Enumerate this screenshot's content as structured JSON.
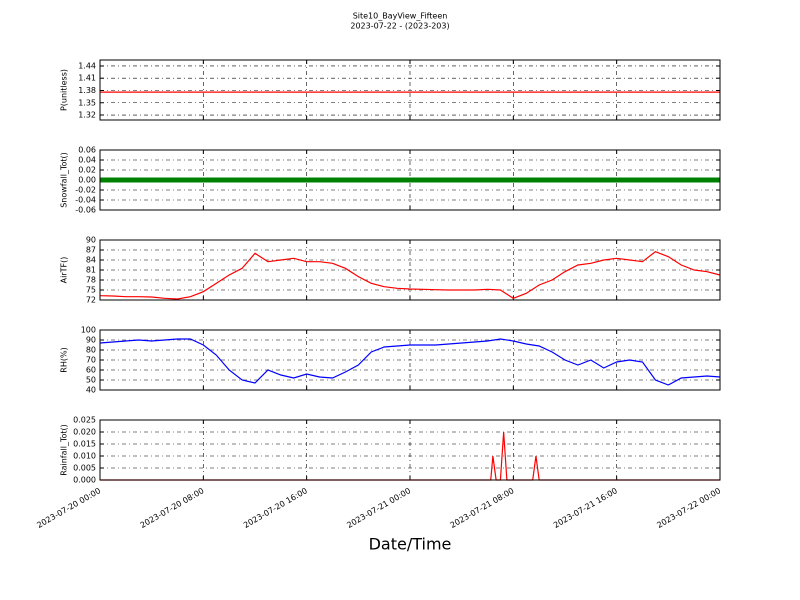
{
  "chart_data": [
    {
      "type": "line",
      "title": "Site10_BayView_Fifteen",
      "subtitle": "2023-07-22 - (2023-203)",
      "ylabel": "P(unitless)",
      "x": [
        "2023-07-20 00:00",
        "2023-07-22 00:00"
      ],
      "series": [
        {
          "name": "P",
          "color": "#ff0000",
          "values": [
            1.376,
            1.376
          ]
        }
      ],
      "xlim": [
        "2023-07-20 00:00",
        "2023-07-22 00:00"
      ],
      "xticks": [
        "2023-07-20 00:00",
        "2023-07-20 08:00",
        "2023-07-20 16:00",
        "2023-07-21 00:00",
        "2023-07-21 08:00",
        "2023-07-21 16:00",
        "2023-07-22 00:00"
      ],
      "ylim": [
        1.3078,
        1.4546
      ],
      "yticks": [
        1.32,
        1.35,
        1.38,
        1.41,
        1.44
      ],
      "grid": true
    },
    {
      "type": "line",
      "ylabel": "Snowfall_Tot()",
      "x": [
        "2023-07-20 00:00",
        "2023-07-20 01:00",
        "2023-07-20 02:00",
        "2023-07-20 03:00",
        "2023-07-20 04:00",
        "2023-07-20 05:00",
        "2023-07-20 06:00",
        "2023-07-20 07:00",
        "2023-07-20 08:00",
        "2023-07-20 09:00",
        "2023-07-20 10:00",
        "2023-07-20 11:00",
        "2023-07-20 12:00",
        "2023-07-20 13:00",
        "2023-07-20 14:00",
        "2023-07-20 15:00",
        "2023-07-20 16:00",
        "2023-07-20 17:00",
        "2023-07-20 18:00",
        "2023-07-20 19:00",
        "2023-07-20 20:00",
        "2023-07-20 21:00",
        "2023-07-20 22:00",
        "2023-07-20 23:00",
        "2023-07-21 00:00",
        "2023-07-21 01:00",
        "2023-07-21 02:00",
        "2023-07-21 03:00",
        "2023-07-21 04:00",
        "2023-07-21 05:00",
        "2023-07-21 06:00",
        "2023-07-21 07:00",
        "2023-07-21 08:00",
        "2023-07-21 09:00",
        "2023-07-21 10:00",
        "2023-07-21 11:00",
        "2023-07-21 12:00",
        "2023-07-21 13:00",
        "2023-07-21 14:00",
        "2023-07-21 15:00",
        "2023-07-21 16:00",
        "2023-07-21 17:00",
        "2023-07-21 18:00",
        "2023-07-21 19:00",
        "2023-07-21 20:00",
        "2023-07-21 21:00",
        "2023-07-21 22:00",
        "2023-07-21 23:00",
        "2023-07-22 00:00"
      ],
      "series": [
        {
          "name": "Snowfall_Tot",
          "color": "#008000",
          "values": [
            0,
            0,
            0,
            0,
            0,
            0,
            0,
            0,
            0,
            0,
            0,
            0,
            0,
            0,
            0,
            0,
            0,
            0,
            0,
            0,
            0,
            0,
            0,
            0,
            0,
            0,
            0,
            0,
            0,
            0,
            0,
            0,
            0,
            0,
            0,
            0,
            0,
            0,
            0,
            0,
            0,
            0,
            0,
            0,
            0,
            0,
            0,
            0,
            0
          ]
        }
      ],
      "xlim": [
        "2023-07-20 00:00",
        "2023-07-22 00:00"
      ],
      "xticks": [
        "2023-07-20 00:00",
        "2023-07-20 08:00",
        "2023-07-20 16:00",
        "2023-07-21 00:00",
        "2023-07-21 08:00",
        "2023-07-21 16:00",
        "2023-07-22 00:00"
      ],
      "ylim": [
        -0.06,
        0.06
      ],
      "yticks": [
        -0.06,
        -0.04,
        -0.02,
        {
          "value": 0,
          "label": "0.00"
        },
        0.02,
        0.04,
        0.06
      ],
      "grid": true
    },
    {
      "type": "line",
      "ylabel": "AirTF()",
      "x": [
        "2023-07-20 00:00",
        "2023-07-20 01:00",
        "2023-07-20 02:00",
        "2023-07-20 03:00",
        "2023-07-20 04:00",
        "2023-07-20 05:00",
        "2023-07-20 06:00",
        "2023-07-20 07:00",
        "2023-07-20 08:00",
        "2023-07-20 09:00",
        "2023-07-20 10:00",
        "2023-07-20 11:00",
        "2023-07-20 12:00",
        "2023-07-20 13:00",
        "2023-07-20 14:00",
        "2023-07-20 15:00",
        "2023-07-20 16:00",
        "2023-07-20 17:00",
        "2023-07-20 18:00",
        "2023-07-20 19:00",
        "2023-07-20 20:00",
        "2023-07-20 21:00",
        "2023-07-20 22:00",
        "2023-07-20 23:00",
        "2023-07-21 00:00",
        "2023-07-21 01:00",
        "2023-07-21 02:00",
        "2023-07-21 03:00",
        "2023-07-21 04:00",
        "2023-07-21 05:00",
        "2023-07-21 06:00",
        "2023-07-21 07:00",
        "2023-07-21 08:00",
        "2023-07-21 09:00",
        "2023-07-21 10:00",
        "2023-07-21 11:00",
        "2023-07-21 12:00",
        "2023-07-21 13:00",
        "2023-07-21 14:00",
        "2023-07-21 15:00",
        "2023-07-21 16:00",
        "2023-07-21 17:00",
        "2023-07-21 18:00",
        "2023-07-21 19:00",
        "2023-07-21 20:00",
        "2023-07-21 21:00",
        "2023-07-21 22:00",
        "2023-07-21 23:00",
        "2023-07-22 00:00"
      ],
      "series": [
        {
          "name": "AirTF",
          "color": "#ff0000",
          "values": [
            73.3,
            73.2,
            73.0,
            73.0,
            72.9,
            72.5,
            72.3,
            73.0,
            74.5,
            77.0,
            79.5,
            81.5,
            86.0,
            83.5,
            84.0,
            84.5,
            83.5,
            83.5,
            83.0,
            81.5,
            79.0,
            77.0,
            76.0,
            75.5,
            75.3,
            75.2,
            75.1,
            75.0,
            75.0,
            75.0,
            75.2,
            75.0,
            72.5,
            74.0,
            76.5,
            78.0,
            80.5,
            82.5,
            83.0,
            84.0,
            84.5,
            84.0,
            83.5,
            86.5,
            85.0,
            82.5,
            81.0,
            80.5,
            79.5
          ]
        }
      ],
      "xlim": [
        "2023-07-20 00:00",
        "2023-07-22 00:00"
      ],
      "xticks": [
        "2023-07-20 00:00",
        "2023-07-20 08:00",
        "2023-07-20 16:00",
        "2023-07-21 00:00",
        "2023-07-21 08:00",
        "2023-07-21 16:00",
        "2023-07-22 00:00"
      ],
      "ylim": [
        72,
        90
      ],
      "yticks": [
        72,
        75,
        78,
        81,
        84,
        87,
        90
      ],
      "grid": true
    },
    {
      "type": "line",
      "ylabel": "RH(%)",
      "x": [
        "2023-07-20 00:00",
        "2023-07-20 01:00",
        "2023-07-20 02:00",
        "2023-07-20 03:00",
        "2023-07-20 04:00",
        "2023-07-20 05:00",
        "2023-07-20 06:00",
        "2023-07-20 07:00",
        "2023-07-20 08:00",
        "2023-07-20 09:00",
        "2023-07-20 10:00",
        "2023-07-20 11:00",
        "2023-07-20 12:00",
        "2023-07-20 13:00",
        "2023-07-20 14:00",
        "2023-07-20 15:00",
        "2023-07-20 16:00",
        "2023-07-20 17:00",
        "2023-07-20 18:00",
        "2023-07-20 19:00",
        "2023-07-20 20:00",
        "2023-07-20 21:00",
        "2023-07-20 22:00",
        "2023-07-20 23:00",
        "2023-07-21 00:00",
        "2023-07-21 01:00",
        "2023-07-21 02:00",
        "2023-07-21 03:00",
        "2023-07-21 04:00",
        "2023-07-21 05:00",
        "2023-07-21 06:00",
        "2023-07-21 07:00",
        "2023-07-21 08:00",
        "2023-07-21 09:00",
        "2023-07-21 10:00",
        "2023-07-21 11:00",
        "2023-07-21 12:00",
        "2023-07-21 13:00",
        "2023-07-21 14:00",
        "2023-07-21 15:00",
        "2023-07-21 16:00",
        "2023-07-21 17:00",
        "2023-07-21 18:00",
        "2023-07-21 19:00",
        "2023-07-21 20:00",
        "2023-07-21 21:00",
        "2023-07-21 22:00",
        "2023-07-21 23:00",
        "2023-07-22 00:00"
      ],
      "series": [
        {
          "name": "RH",
          "color": "#0000ff",
          "values": [
            87,
            88,
            89,
            90,
            89,
            90,
            91,
            91,
            85,
            75,
            60,
            50,
            47,
            60,
            55,
            52,
            56,
            53,
            52,
            58,
            65,
            78,
            83,
            84,
            85,
            85,
            85,
            86,
            87,
            88,
            89,
            91,
            89,
            86,
            84,
            78,
            70,
            65,
            70,
            62,
            68,
            70,
            68,
            50,
            45,
            52,
            53,
            54,
            53
          ]
        }
      ],
      "xlim": [
        "2023-07-20 00:00",
        "2023-07-22 00:00"
      ],
      "xticks": [
        "2023-07-20 00:00",
        "2023-07-20 08:00",
        "2023-07-20 16:00",
        "2023-07-21 00:00",
        "2023-07-21 08:00",
        "2023-07-21 16:00",
        "2023-07-22 00:00"
      ],
      "ylim": [
        40,
        100
      ],
      "yticks": [
        40,
        50,
        60,
        70,
        80,
        90,
        100
      ],
      "grid": true
    },
    {
      "type": "line",
      "ylabel": "Rainfall_Tot()",
      "xlabel": "Date/Time",
      "x": [
        "2023-07-20 00:00",
        "2023-07-21 06:15",
        "2023-07-21 06:25",
        "2023-07-21 06:40",
        "2023-07-21 07:00",
        "2023-07-21 07:15",
        "2023-07-21 07:30",
        "2023-07-21 09:30",
        "2023-07-21 09:45",
        "2023-07-21 10:00",
        "2023-07-22 00:00"
      ],
      "series": [
        {
          "name": "Rainfall_Tot",
          "color": "#ff0000",
          "values": [
            0,
            0,
            0.01,
            0,
            0,
            0.02,
            0,
            0,
            0.01,
            0,
            0
          ]
        }
      ],
      "xlim": [
        "2023-07-20 00:00",
        "2023-07-22 00:00"
      ],
      "xticks": [
        "2023-07-20 00:00",
        "2023-07-20 08:00",
        "2023-07-20 16:00",
        "2023-07-21 00:00",
        "2023-07-21 08:00",
        "2023-07-21 16:00",
        "2023-07-22 00:00"
      ],
      "ylim": [
        0,
        0.025
      ],
      "yticks": [
        {
          "value": 0,
          "label": "0.000"
        },
        0.005,
        {
          "value": 0.01,
          "label": "0.010"
        },
        0.015,
        {
          "value": 0.02,
          "label": "0.020"
        },
        0.025
      ],
      "grid": true
    }
  ]
}
